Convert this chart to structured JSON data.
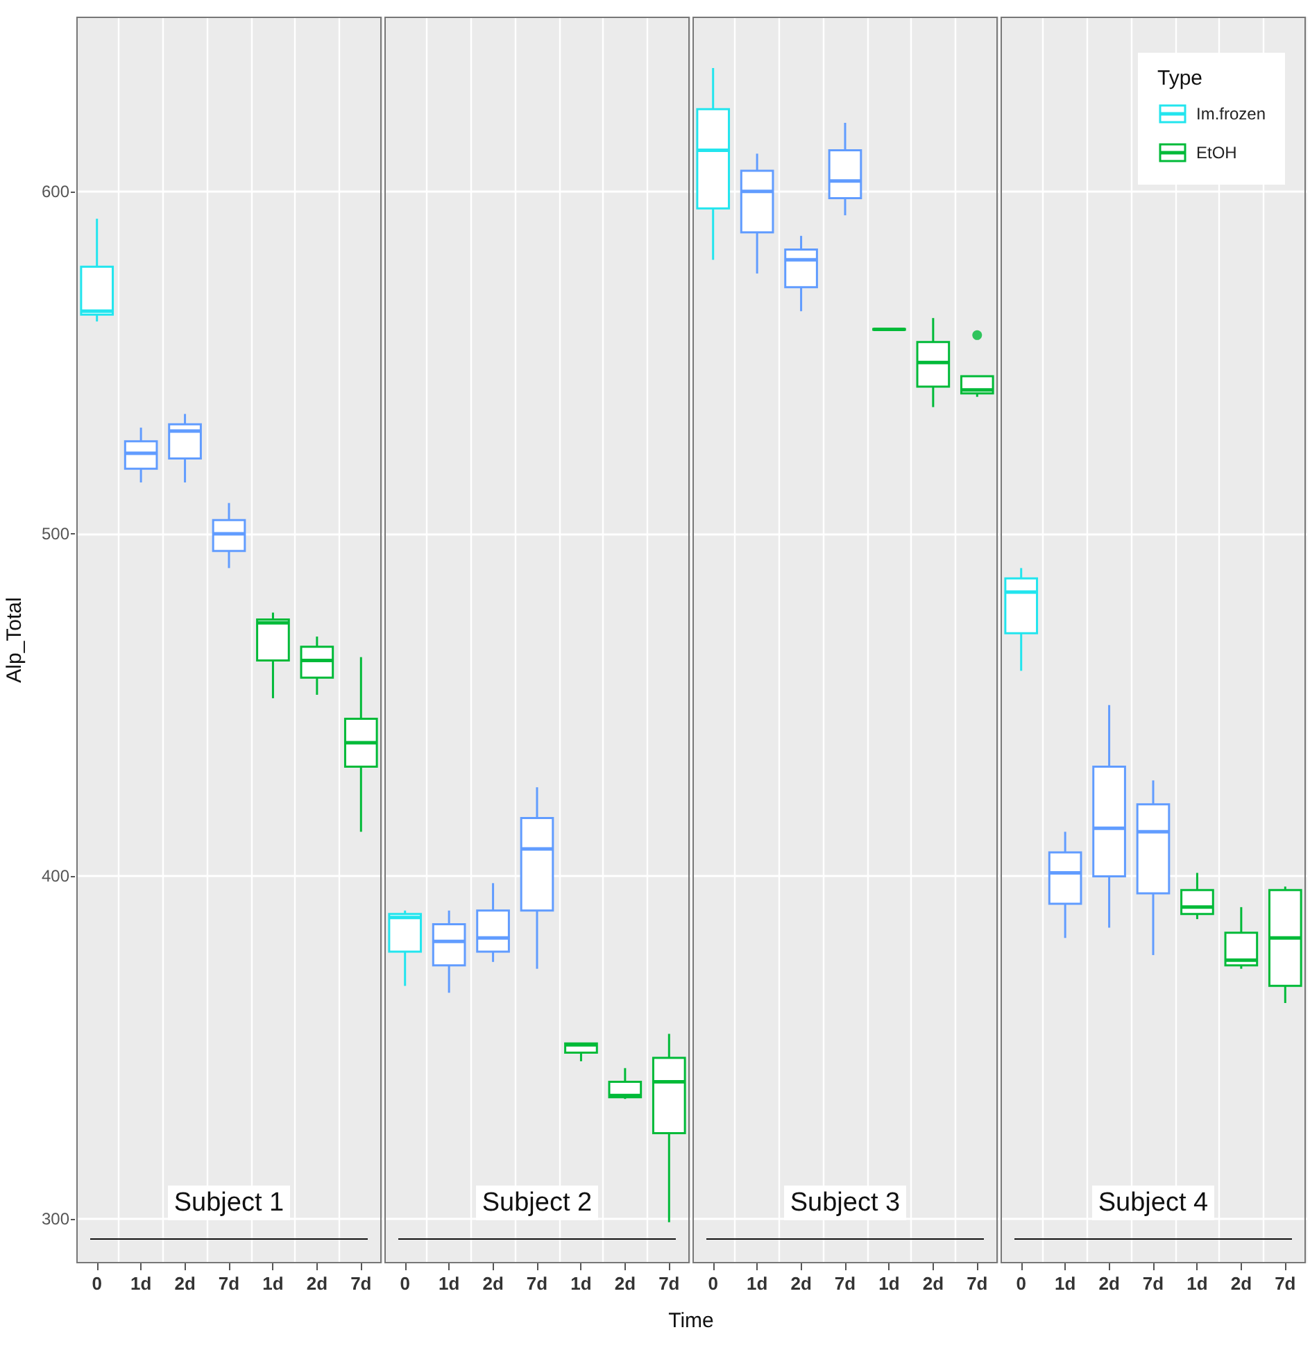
{
  "chart_data": {
    "type": "box",
    "ylabel": "Alp_Total",
    "xlabel": "Time",
    "legend_title": "Type",
    "legend": "top right",
    "grid": true,
    "categories": [
      "0",
      "1d",
      "2d",
      "7d",
      "1d",
      "2d",
      "7d",
      "0",
      "1d",
      "2d",
      "7d",
      "1d",
      "2d",
      "7d",
      "0",
      "1d",
      "2d",
      "7d",
      "1d",
      "2d",
      "7d",
      "0",
      "1d",
      "2d",
      "7d",
      "1d",
      "2d",
      "7d"
    ],
    "ylim": [
      287,
      651
    ],
    "yticks": [
      300,
      400,
      500,
      600
    ],
    "annotations": [
      "Subject 1",
      "Subject 2",
      "Subject 3",
      "Subject 4"
    ],
    "series": [
      {
        "name": "Im.frozen",
        "color": "#22e5ee",
        "boxes": [
          {
            "low": 562,
            "q1": 564,
            "median": 565,
            "q3": 578,
            "high": 592
          },
          null,
          null,
          null,
          null,
          null,
          null,
          {
            "low": 368,
            "q1": 378,
            "median": 388,
            "q3": 389,
            "high": 390
          },
          null,
          null,
          null,
          null,
          null,
          null,
          {
            "low": 580,
            "q1": 595,
            "median": 612,
            "q3": 624,
            "high": 636
          },
          null,
          null,
          null,
          null,
          null,
          null,
          {
            "low": 460,
            "q1": 471,
            "median": 483,
            "q3": 487,
            "high": 490
          },
          null,
          null,
          null,
          null,
          null,
          null
        ]
      },
      {
        "color": "#619cff",
        "boxes": [
          null,
          {
            "low": 515,
            "q1": 519,
            "median": 523.5,
            "q3": 527,
            "high": 531
          },
          {
            "low": 515,
            "q1": 522,
            "median": 530,
            "q3": 532,
            "high": 535
          },
          {
            "low": 490,
            "q1": 495,
            "median": 500,
            "q3": 504,
            "high": 509
          },
          null,
          null,
          null,
          null,
          {
            "low": 366,
            "q1": 374,
            "median": 381,
            "q3": 386,
            "high": 390
          },
          {
            "low": 375,
            "q1": 378,
            "median": 382,
            "q3": 390,
            "high": 398
          },
          {
            "low": 373,
            "q1": 390,
            "median": 408,
            "q3": 417,
            "high": 426
          },
          null,
          null,
          null,
          null,
          {
            "low": 576,
            "q1": 588,
            "median": 600,
            "q3": 606,
            "high": 611
          },
          {
            "low": 565,
            "q1": 572,
            "median": 580,
            "q3": 583,
            "high": 587
          },
          {
            "low": 593,
            "q1": 598,
            "median": 603,
            "q3": 612,
            "high": 620
          },
          null,
          null,
          null,
          null,
          {
            "low": 382,
            "q1": 392,
            "median": 401,
            "q3": 407,
            "high": 413
          },
          {
            "low": 385,
            "q1": 400,
            "median": 414,
            "q3": 432,
            "high": 450
          },
          {
            "low": 377,
            "q1": 395,
            "median": 413,
            "q3": 421,
            "high": 428
          },
          null,
          null,
          null
        ]
      },
      {
        "name": "EtOH",
        "color": "#00ba38",
        "boxes": [
          null,
          null,
          null,
          null,
          {
            "low": 452,
            "q1": 463,
            "median": 474,
            "q3": 475,
            "high": 477
          },
          {
            "low": 453,
            "q1": 458,
            "median": 463,
            "q3": 467,
            "high": 470
          },
          {
            "low": 413,
            "q1": 432,
            "median": 439,
            "q3": 446,
            "high": 464
          },
          null,
          null,
          null,
          null,
          {
            "low": 346,
            "q1": 348.5,
            "median": 350.8,
            "q3": 351.2,
            "high": 351.2
          },
          {
            "low": 335,
            "q1": 335.5,
            "median": 336,
            "q3": 340,
            "high": 344
          },
          {
            "low": 299,
            "q1": 325,
            "median": 340,
            "q3": 347,
            "high": 354
          },
          null,
          null,
          null,
          null,
          {
            "low": 559.5,
            "q1": 559.6,
            "median": 559.7,
            "q3": 559.8,
            "high": 560
          },
          {
            "low": 537,
            "q1": 543,
            "median": 550,
            "q3": 556,
            "high": 563
          },
          {
            "low": 540,
            "q1": 541,
            "median": 542,
            "q3": 546,
            "high": 546,
            "outliers": [
              558
            ]
          },
          null,
          null,
          null,
          null,
          {
            "low": 387.5,
            "q1": 389,
            "median": 391,
            "q3": 396,
            "high": 401
          },
          {
            "low": 373,
            "q1": 374,
            "median": 375.5,
            "q3": 383.5,
            "high": 391
          },
          {
            "low": 363,
            "q1": 368,
            "median": 382,
            "q3": 396,
            "high": 397
          }
        ]
      }
    ]
  }
}
